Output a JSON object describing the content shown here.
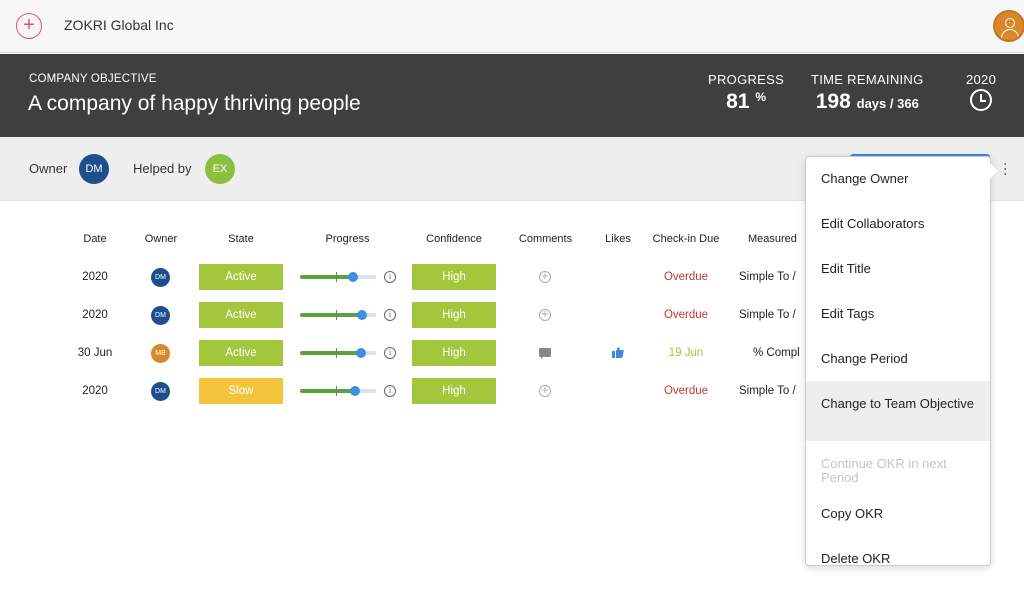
{
  "app": {
    "company_name": "ZOKRI Global Inc"
  },
  "objective": {
    "kicker": "COMPANY OBJECTIVE",
    "title": "A company of happy thriving people",
    "progress_label": "PROGRESS",
    "progress_value": "81",
    "progress_unit": "%",
    "time_label": "TIME REMAINING",
    "time_value": "198",
    "time_unit": "days / 366",
    "period_label": "2020"
  },
  "ownership": {
    "owner_label": "Owner",
    "owner_initials": "DM",
    "helped_label": "Helped by",
    "helper_initials": "EX"
  },
  "table": {
    "headers": [
      "Date",
      "Owner",
      "State",
      "Progress",
      "Confidence",
      "Comments",
      "Likes",
      "Check-in Due",
      "Measured"
    ],
    "rows": [
      {
        "date": "2020",
        "owner": "DM",
        "state": "Active",
        "progress": 0.7,
        "confidence": "High",
        "comments": "add",
        "likes": "",
        "checkin": "Overdue",
        "measured": "Simple To /"
      },
      {
        "date": "2020",
        "owner": "DM",
        "state": "Active",
        "progress": 0.82,
        "confidence": "High",
        "comments": "add",
        "likes": "",
        "checkin": "Overdue",
        "measured": "Simple To /"
      },
      {
        "date": "30 Jun",
        "owner": "MB",
        "state": "Active",
        "progress": 0.8,
        "confidence": "High",
        "comments": "comment",
        "likes": "like",
        "checkin": "19 Jun",
        "measured": "% Compl"
      },
      {
        "date": "2020",
        "owner": "DM",
        "state": "Slow",
        "progress": 0.72,
        "confidence": "High",
        "comments": "add",
        "likes": "",
        "checkin": "Overdue",
        "measured": "Simple To /"
      }
    ]
  },
  "menu": {
    "items": [
      {
        "label": "Change Owner",
        "enabled": true
      },
      {
        "label": "Edit Collaborators",
        "enabled": true
      },
      {
        "label": "Edit Title",
        "enabled": true
      },
      {
        "label": "Edit Tags",
        "enabled": true
      },
      {
        "label": "Change Period",
        "enabled": true
      },
      {
        "label": "Change to Team Objective",
        "enabled": true,
        "highlighted": true
      },
      {
        "label": "Continue OKR in next Period",
        "enabled": false
      },
      {
        "label": "Copy OKR",
        "enabled": true
      },
      {
        "label": "Delete OKR",
        "enabled": true
      }
    ]
  },
  "colors": {
    "accent_pink": "#e0507a",
    "active_green": "#a4c63c",
    "slow_yellow": "#f2c53d",
    "overdue_red": "#c0392b",
    "due_green": "#9bc53d",
    "owner_dm": "#1f4e8c",
    "owner_mb": "#d8872a",
    "helper_ex": "#8cbf3f",
    "banner_bg": "#3f3f3f"
  }
}
